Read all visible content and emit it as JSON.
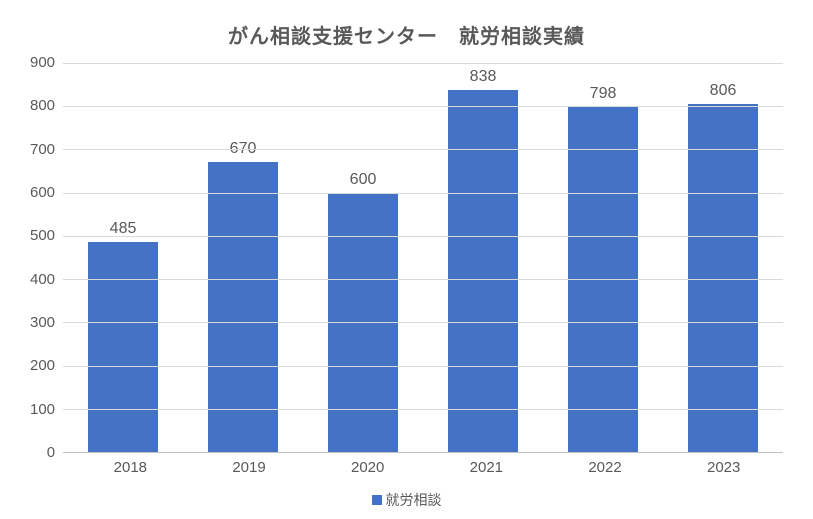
{
  "chart": {
    "type": "bar",
    "title": "がん相談支援センター　就労相談実績",
    "title_fontsize": 20,
    "title_color": "#595959",
    "categories": [
      "2018",
      "2019",
      "2020",
      "2021",
      "2022",
      "2023"
    ],
    "values": [
      485,
      670,
      600,
      838,
      798,
      806
    ],
    "bar_color": "#4472c4",
    "bar_width_pct": 58,
    "ylim": [
      0,
      900
    ],
    "ytick_step": 100,
    "yticks": [
      900,
      800,
      700,
      600,
      500,
      400,
      300,
      200,
      100,
      0
    ],
    "axis_fontsize": 15,
    "axis_color": "#595959",
    "datalabel_fontsize": 16,
    "datalabel_color": "#595959",
    "grid_color": "#d9d9d9",
    "axis_line_color": "#bfbfbf",
    "background_color": "#ffffff",
    "legend": {
      "label": "就労相談",
      "swatch_color": "#4472c4",
      "fontsize": 14
    }
  }
}
